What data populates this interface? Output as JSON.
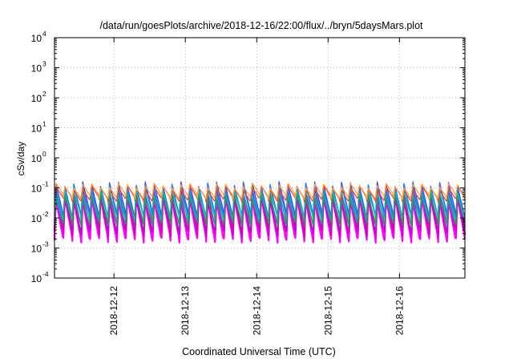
{
  "chart_data": {
    "type": "line",
    "title": "/data/run/goesPlots/archive/2018-12-16/22:00/flux/../bryn/5daysMars.plot",
    "xlabel": "Coordinated Universal Time (UTC)",
    "ylabel": "cSv/day",
    "y_scale": "log",
    "ylim": [
      0.0001,
      10000
    ],
    "y_ticks": [
      {
        "exp": -4,
        "label": "-4"
      },
      {
        "exp": -3,
        "label": "-3"
      },
      {
        "exp": -2,
        "label": "-2"
      },
      {
        "exp": -1,
        "label": "-1"
      },
      {
        "exp": 0,
        "label": "0"
      },
      {
        "exp": 1,
        "label": "1"
      },
      {
        "exp": 2,
        "label": "2"
      },
      {
        "exp": 3,
        "label": "3"
      },
      {
        "exp": 4,
        "label": "4"
      }
    ],
    "y_tick_base": "10",
    "x_range": [
      "2018-12-11 04:00",
      "2018-12-16 22:00"
    ],
    "x_ticks": [
      "2018-12-12",
      "2018-12-13",
      "2018-12-14",
      "2018-12-15",
      "2018-12-16"
    ],
    "grid": true,
    "legend": "none",
    "sawtooth_period_hours": 3,
    "series": [
      {
        "color": "#ff00ff",
        "peak": 0.045,
        "trough": 0.0018
      },
      {
        "color": "#d000d0",
        "peak": 0.06,
        "trough": 0.003
      },
      {
        "color": "#c02080",
        "peak": 0.08,
        "trough": 0.006
      },
      {
        "color": "#4040ff",
        "peak": 0.14,
        "trough": 0.012
      },
      {
        "color": "#0090ff",
        "peak": 0.11,
        "trough": 0.01
      },
      {
        "color": "#00c0c0",
        "peak": 0.07,
        "trough": 0.009
      },
      {
        "color": "#20a060",
        "peak": 0.05,
        "trough": 0.006
      },
      {
        "color": "#ff4020",
        "peak": 0.1,
        "trough": 0.04
      },
      {
        "color": "#ffa040",
        "peak": 0.12,
        "trough": 0.05
      }
    ]
  }
}
